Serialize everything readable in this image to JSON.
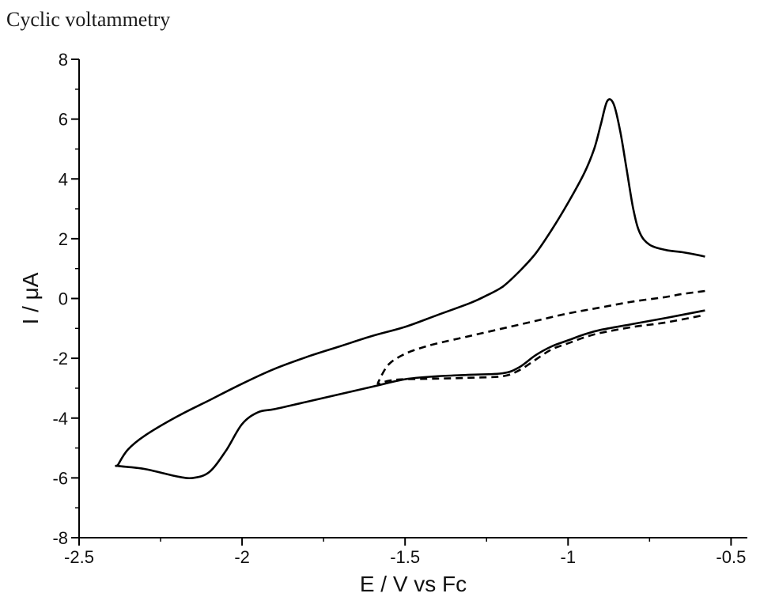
{
  "page": {
    "heading": "Cyclic voltammetry"
  },
  "chart_data": {
    "type": "line",
    "title": "",
    "xlabel": "E / V vs Fc",
    "ylabel": "I / μA",
    "xlim": [
      -2.5,
      -0.45
    ],
    "ylim": [
      -8,
      8
    ],
    "x_ticks": [
      -2.5,
      -2,
      -1.5,
      -1,
      -0.5
    ],
    "x_tick_labels": [
      "-2.5",
      "-2",
      "-1.5",
      "-1",
      "-0.5"
    ],
    "x_minor_ticks": [
      -2.25,
      -1.75,
      -1.25,
      -0.75
    ],
    "y_ticks": [
      -8,
      -6,
      -4,
      -2,
      0,
      2,
      4,
      6,
      8
    ],
    "y_tick_labels": [
      "-8",
      "-6",
      "-4",
      "-2",
      "0",
      "2",
      "4",
      "6",
      "8"
    ],
    "y_minor_ticks": [
      -7,
      -5,
      -3,
      -1,
      1,
      3,
      5,
      7
    ],
    "grid": false,
    "legend": "none",
    "series": [
      {
        "style": "solid",
        "color": "#000000",
        "x": [
          -0.58,
          -0.6,
          -0.65,
          -0.7,
          -0.75,
          -0.78,
          -0.8,
          -0.82,
          -0.84,
          -0.86,
          -0.88,
          -0.9,
          -0.92,
          -0.95,
          -1.0,
          -1.05,
          -1.1,
          -1.15,
          -1.2,
          -1.25,
          -1.3,
          -1.4,
          -1.5,
          -1.6,
          -1.7,
          -1.8,
          -1.9,
          -2.0,
          -2.1,
          -2.2,
          -2.3,
          -2.35,
          -2.38,
          -2.38,
          -2.3,
          -2.2,
          -2.15,
          -2.1,
          -2.05,
          -2.0,
          -1.95,
          -1.9,
          -1.8,
          -1.7,
          -1.6,
          -1.5,
          -1.4,
          -1.3,
          -1.2,
          -1.15,
          -1.1,
          -1.05,
          -1.0,
          -0.95,
          -0.9,
          -0.8,
          -0.7,
          -0.58
        ],
        "y": [
          1.4,
          1.45,
          1.55,
          1.62,
          1.8,
          2.2,
          3.0,
          4.3,
          5.6,
          6.5,
          6.6,
          5.8,
          5.0,
          4.2,
          3.2,
          2.3,
          1.5,
          0.9,
          0.4,
          0.1,
          -0.15,
          -0.55,
          -0.95,
          -1.25,
          -1.6,
          -1.95,
          -2.35,
          -2.85,
          -3.4,
          -3.95,
          -4.6,
          -5.05,
          -5.55,
          -5.6,
          -5.7,
          -5.95,
          -6.0,
          -5.8,
          -5.1,
          -4.2,
          -3.8,
          -3.7,
          -3.45,
          -3.2,
          -2.95,
          -2.7,
          -2.6,
          -2.55,
          -2.5,
          -2.3,
          -1.9,
          -1.6,
          -1.4,
          -1.2,
          -1.05,
          -0.85,
          -0.65,
          -0.4
        ]
      },
      {
        "style": "dashed",
        "color": "#000000",
        "x": [
          -0.58,
          -0.65,
          -0.7,
          -0.8,
          -0.9,
          -1.0,
          -1.1,
          -1.2,
          -1.3,
          -1.4,
          -1.45,
          -1.5,
          -1.55,
          -1.58,
          -1.58,
          -1.55,
          -1.5,
          -1.4,
          -1.3,
          -1.2,
          -1.15,
          -1.1,
          -1.05,
          -1.0,
          -0.95,
          -0.9,
          -0.8,
          -0.7,
          -0.58
        ],
        "y": [
          0.25,
          0.15,
          0.05,
          -0.1,
          -0.3,
          -0.5,
          -0.75,
          -1.0,
          -1.25,
          -1.5,
          -1.65,
          -1.85,
          -2.2,
          -2.75,
          -2.85,
          -2.75,
          -2.7,
          -2.68,
          -2.65,
          -2.6,
          -2.4,
          -2.05,
          -1.7,
          -1.5,
          -1.3,
          -1.15,
          -0.95,
          -0.8,
          -0.55
        ]
      }
    ]
  }
}
